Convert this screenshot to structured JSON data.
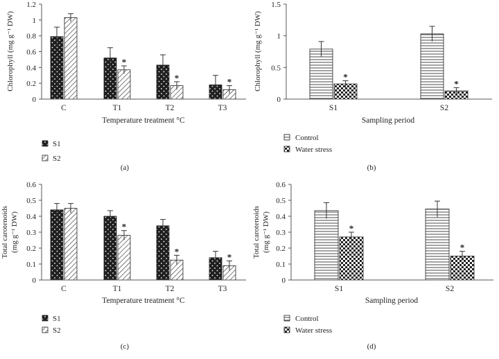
{
  "chart_data": [
    {
      "id": "a",
      "type": "bar",
      "categories": [
        "C",
        "T1",
        "T2",
        "T3"
      ],
      "series": [
        {
          "name": "S1",
          "pattern": "dots-dark",
          "values": [
            0.79,
            0.52,
            0.43,
            0.18
          ],
          "errors": [
            0.12,
            0.13,
            0.13,
            0.12
          ],
          "significant": [
            false,
            false,
            false,
            false
          ]
        },
        {
          "name": "S2",
          "pattern": "diagonal",
          "values": [
            1.03,
            0.37,
            0.17,
            0.12
          ],
          "errors": [
            0.05,
            0.05,
            0.05,
            0.05
          ],
          "significant": [
            false,
            true,
            true,
            true
          ]
        }
      ],
      "ylabel": "Chlorophyll (mg g⁻¹ DW)",
      "xlabel": "Temperature treatment °C",
      "yticks": [
        "0",
        "0.2",
        "0.4",
        "0.6",
        "0.8",
        "1",
        "1.2"
      ],
      "ylim": [
        0,
        1.2
      ],
      "panel_label": "(a)"
    },
    {
      "id": "b",
      "type": "bar",
      "categories": [
        "S1",
        "S2"
      ],
      "series": [
        {
          "name": "Control",
          "pattern": "horizontal",
          "values": [
            0.79,
            1.03
          ],
          "errors": [
            0.12,
            0.12
          ],
          "significant": [
            false,
            false
          ]
        },
        {
          "name": "Water stress",
          "pattern": "checker",
          "values": [
            0.24,
            0.13
          ],
          "errors": [
            0.05,
            0.05
          ],
          "significant": [
            true,
            true
          ]
        }
      ],
      "ylabel": "Chlorophyll (mg g⁻¹ DW)",
      "xlabel": "Sampling period",
      "yticks": [
        "0",
        "0.5",
        "1",
        "1.5"
      ],
      "ylim": [
        0,
        1.5
      ],
      "panel_label": "(b)"
    },
    {
      "id": "c",
      "type": "bar",
      "categories": [
        "C",
        "T1",
        "T2",
        "T3"
      ],
      "series": [
        {
          "name": "S1",
          "pattern": "dots-dark",
          "values": [
            0.44,
            0.4,
            0.34,
            0.14
          ],
          "errors": [
            0.04,
            0.035,
            0.04,
            0.04
          ],
          "significant": [
            false,
            false,
            false,
            false
          ]
        },
        {
          "name": "S2",
          "pattern": "diagonal",
          "values": [
            0.45,
            0.28,
            0.125,
            0.09
          ],
          "errors": [
            0.03,
            0.03,
            0.03,
            0.03
          ],
          "significant": [
            false,
            true,
            true,
            true
          ]
        }
      ],
      "ylabel_lines": [
        "Total carotenoids",
        "(mg g⁻¹ DW)"
      ],
      "xlabel": "Temperature treatment °C",
      "yticks": [
        "0",
        "0.1",
        "0.2",
        "0.3",
        "0.4",
        "0.5",
        "0.6"
      ],
      "ylim": [
        0,
        0.6
      ],
      "panel_label": "(c)"
    },
    {
      "id": "d",
      "type": "bar",
      "categories": [
        "S1",
        "S2"
      ],
      "series": [
        {
          "name": "Control",
          "pattern": "horizontal",
          "values": [
            0.435,
            0.445
          ],
          "errors": [
            0.05,
            0.05
          ],
          "significant": [
            false,
            false
          ]
        },
        {
          "name": "Water stress",
          "pattern": "checker",
          "values": [
            0.27,
            0.15
          ],
          "errors": [
            0.03,
            0.03
          ],
          "significant": [
            true,
            true
          ]
        }
      ],
      "ylabel_lines": [
        "Total carotenoids",
        "(mg g⁻¹ DW)"
      ],
      "xlabel": "Sampling period",
      "yticks": [
        "0",
        "0.1",
        "0.2",
        "0.3",
        "0.4",
        "0.5",
        "0.6"
      ],
      "ylim": [
        0,
        0.6
      ],
      "panel_label": "(d)"
    }
  ],
  "significance_marker": "*",
  "colors": {
    "ink": "#222222",
    "axis": "#555555",
    "dark_fill": "#1f1f1f"
  }
}
